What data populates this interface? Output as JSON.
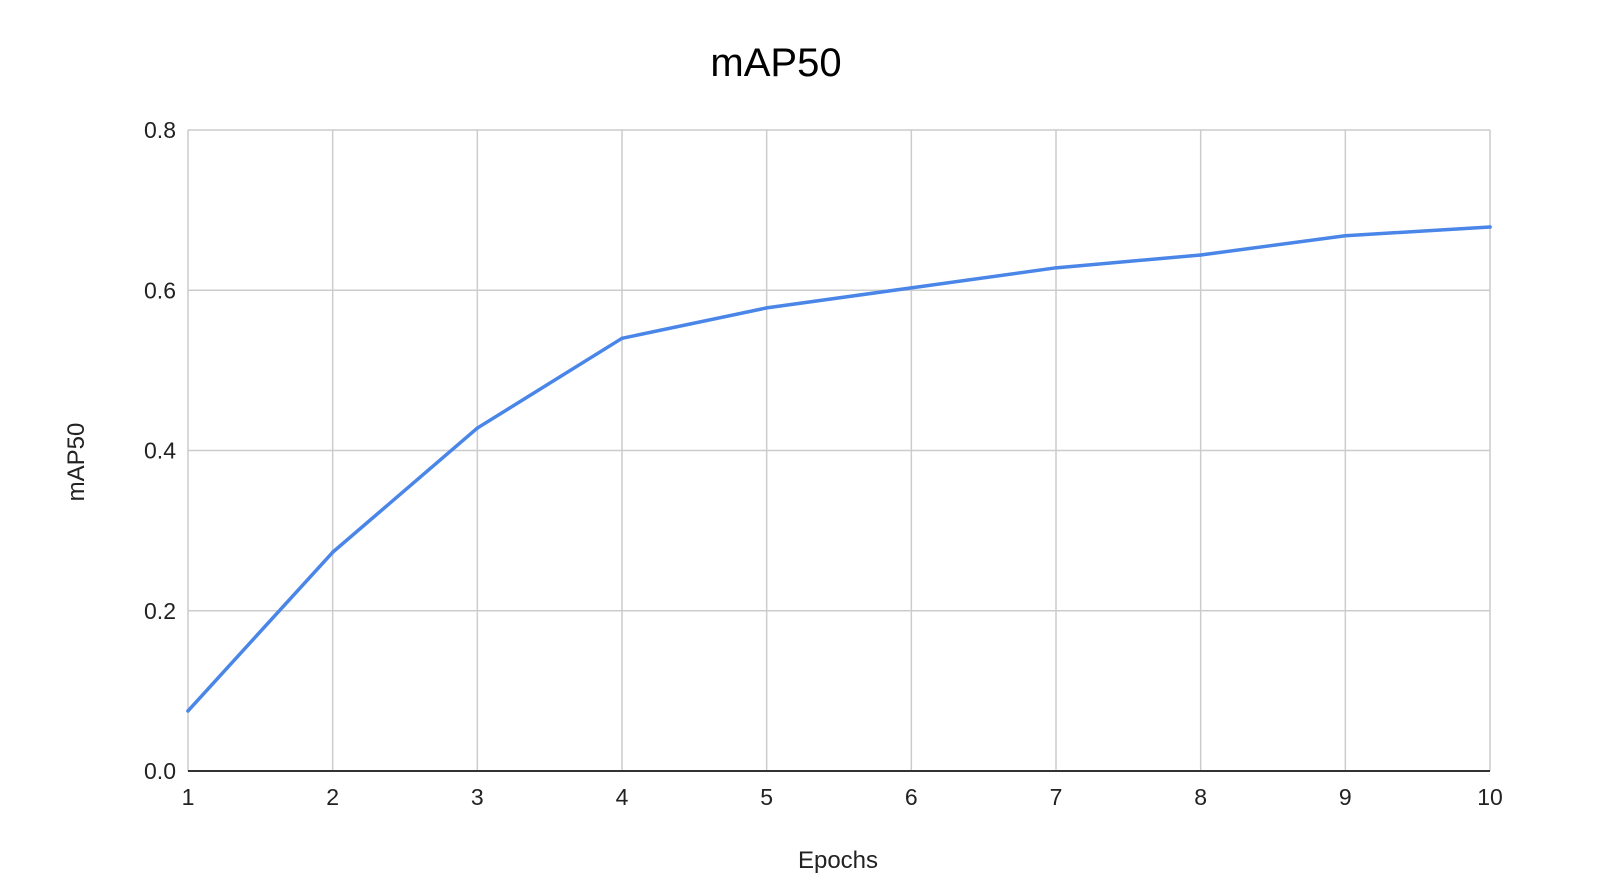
{
  "chart_data": {
    "type": "line",
    "title": "mAP50",
    "xlabel": "Epochs",
    "ylabel": "mAP50",
    "x": [
      1,
      2,
      3,
      4,
      5,
      6,
      7,
      8,
      9,
      10
    ],
    "series": [
      {
        "values": [
          0.075,
          0.273,
          0.428,
          0.54,
          0.578,
          0.603,
          0.628,
          0.644,
          0.668,
          0.679
        ],
        "color": "#4a86e8"
      }
    ],
    "xlim": [
      1,
      10
    ],
    "ylim": [
      0,
      0.8
    ],
    "yticks": [
      "0.0",
      "0.2",
      "0.4",
      "0.6",
      "0.8"
    ],
    "xticks": [
      "1",
      "2",
      "3",
      "4",
      "5",
      "6",
      "7",
      "8",
      "9",
      "10"
    ],
    "grid": true,
    "legend": "none"
  }
}
